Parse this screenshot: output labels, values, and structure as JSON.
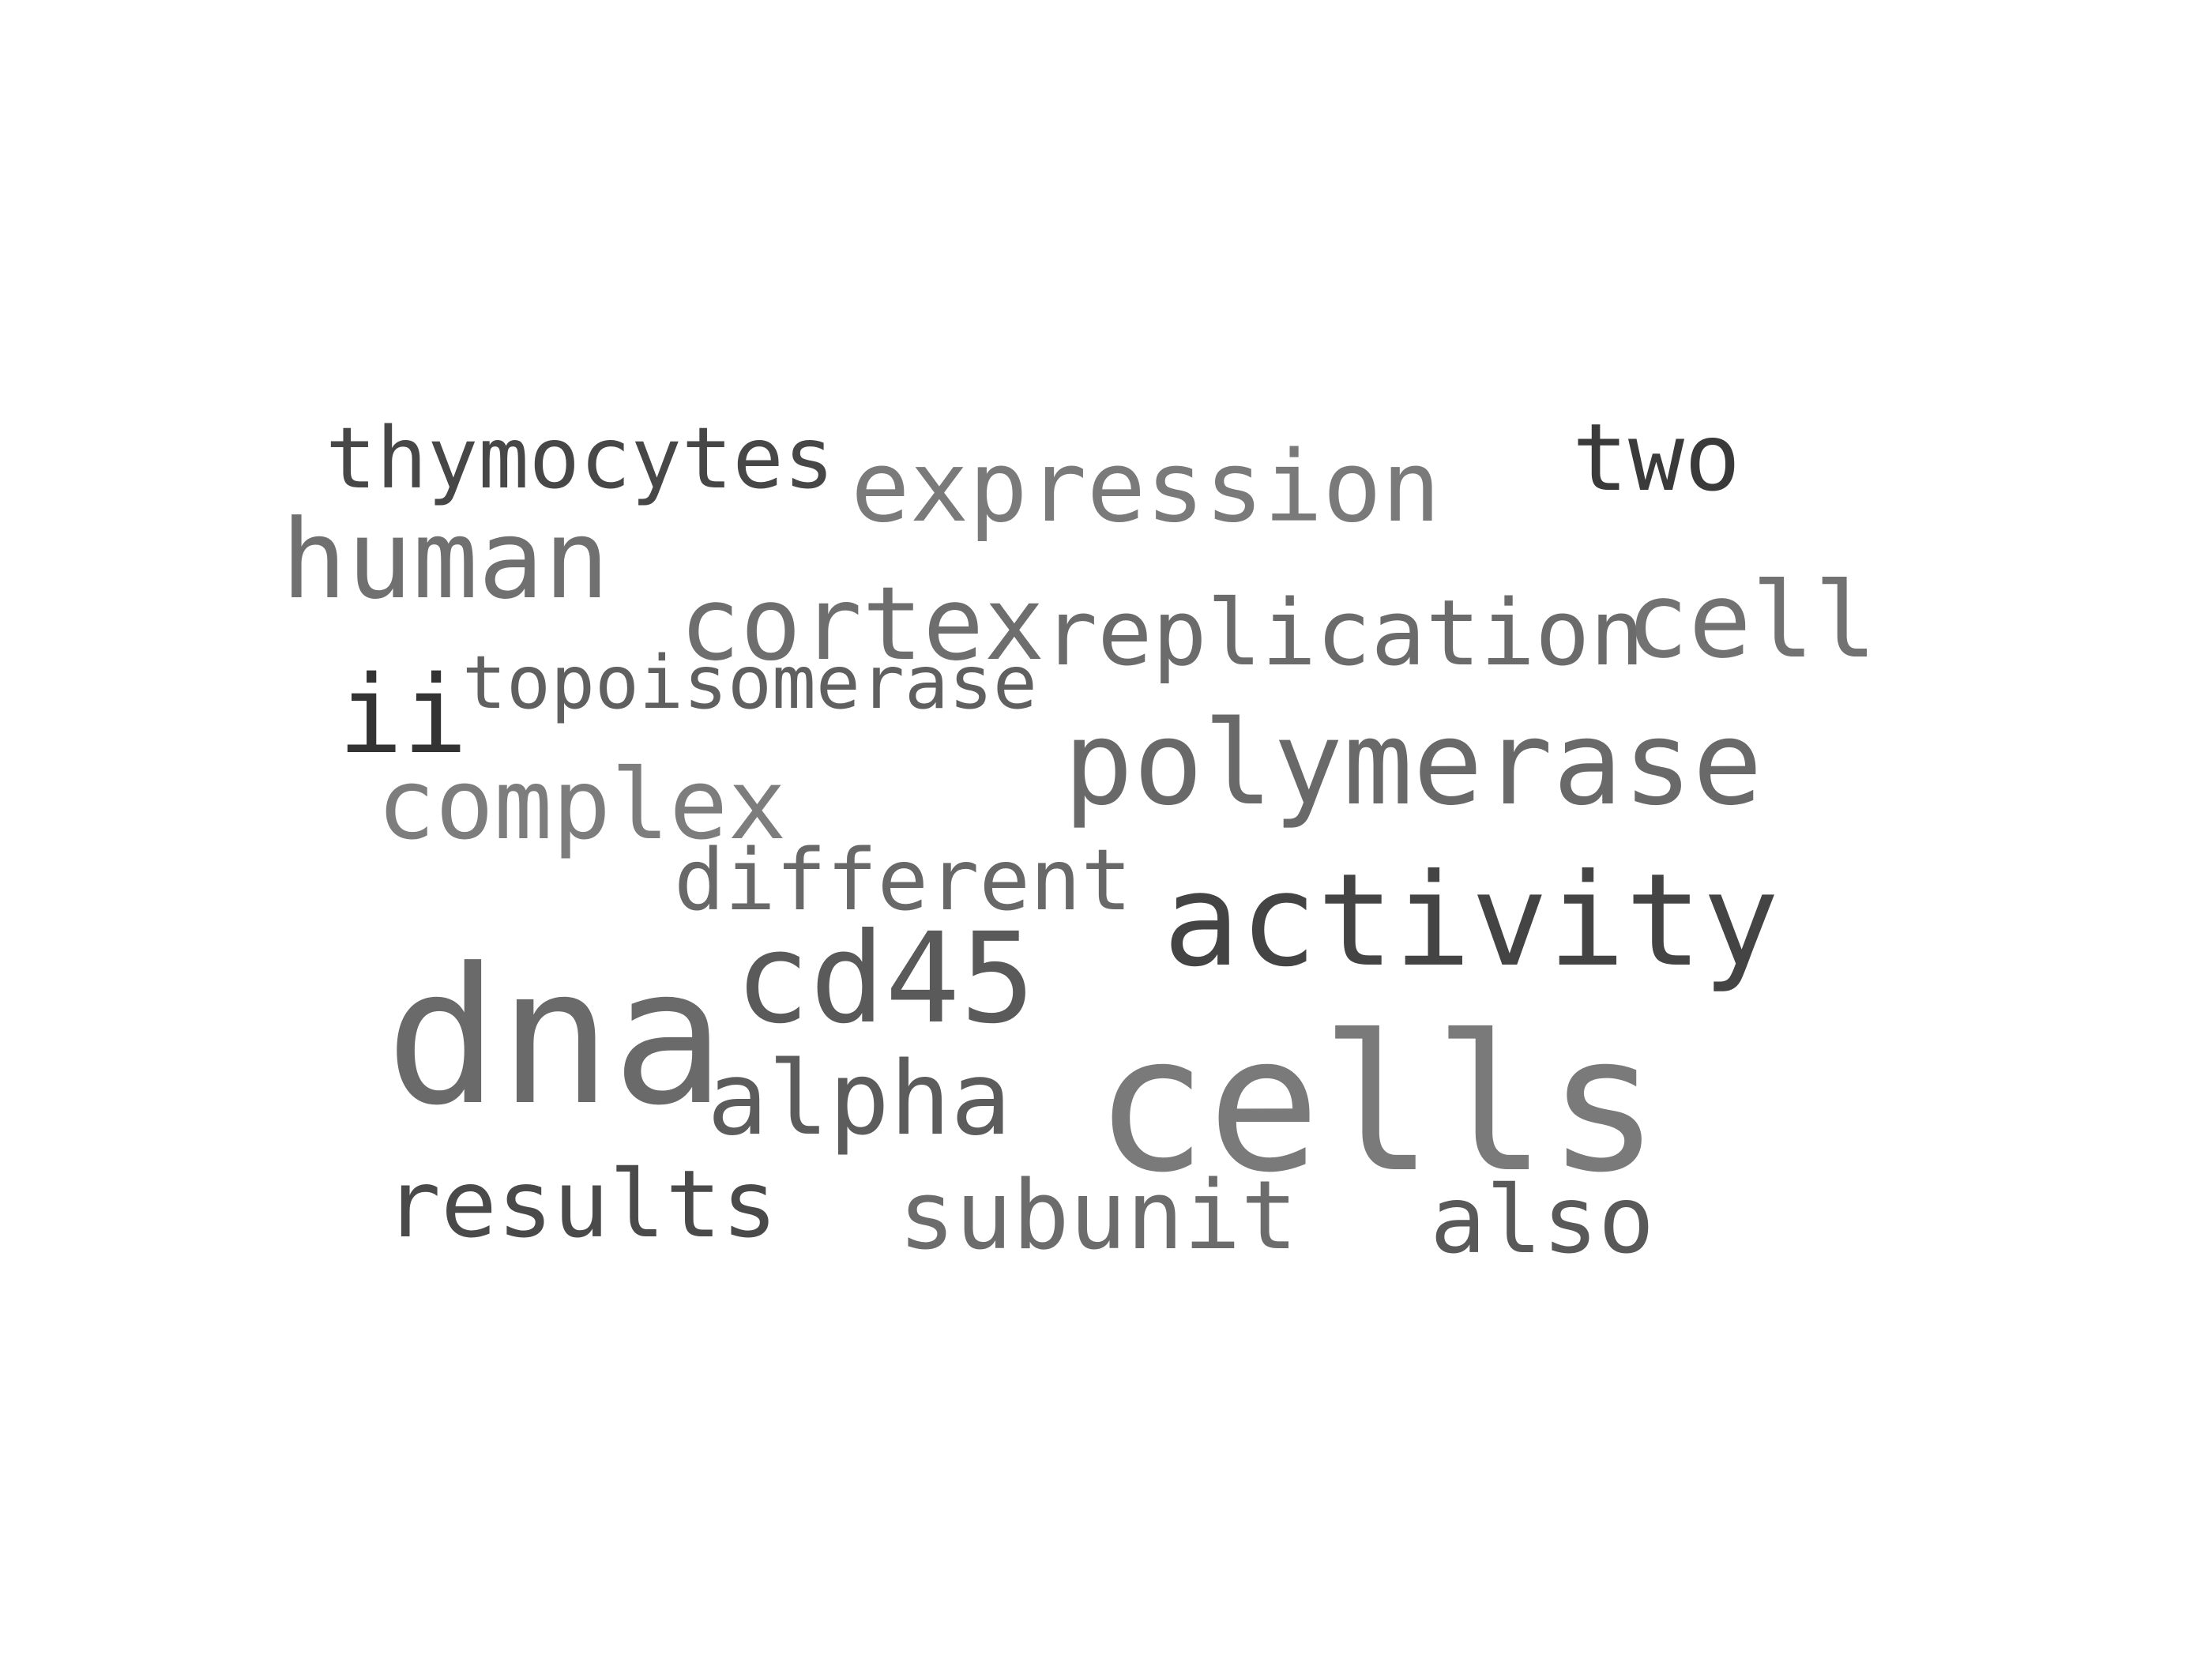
{
  "words": [
    {
      "id": "thymocytes",
      "text": "thymocytes",
      "color": "#474747"
    },
    {
      "id": "expression",
      "text": "expression",
      "color": "#7a7a7a"
    },
    {
      "id": "two",
      "text": "two",
      "color": "#3a3a3a"
    },
    {
      "id": "human",
      "text": "human",
      "color": "#707070"
    },
    {
      "id": "cortex",
      "text": "cortex",
      "color": "#6e6e6e"
    },
    {
      "id": "replication",
      "text": "replication",
      "color": "#6b6b6b"
    },
    {
      "id": "cell",
      "text": "cell",
      "color": "#727272"
    },
    {
      "id": "ii",
      "text": "ii",
      "color": "#333333"
    },
    {
      "id": "topoisomerase",
      "text": "topoisomerase",
      "color": "#606060"
    },
    {
      "id": "polymerase",
      "text": "polymerase",
      "color": "#696969"
    },
    {
      "id": "complex",
      "text": "complex",
      "color": "#7d7d7d"
    },
    {
      "id": "different",
      "text": "different",
      "color": "#686868"
    },
    {
      "id": "activity",
      "text": "activity",
      "color": "#444444"
    },
    {
      "id": "cd45",
      "text": "cd45",
      "color": "#5a5a5a"
    },
    {
      "id": "dna",
      "text": "dna",
      "color": "#6a6a6a"
    },
    {
      "id": "alpha",
      "text": "alpha",
      "color": "#5c5c5c"
    },
    {
      "id": "cells",
      "text": "cells",
      "color": "#7a7a7a"
    },
    {
      "id": "results",
      "text": "results",
      "color": "#4a4a4a"
    },
    {
      "id": "subunit",
      "text": "subunit",
      "color": "#6c6c6c"
    },
    {
      "id": "also",
      "text": "also",
      "color": "#595959"
    }
  ]
}
